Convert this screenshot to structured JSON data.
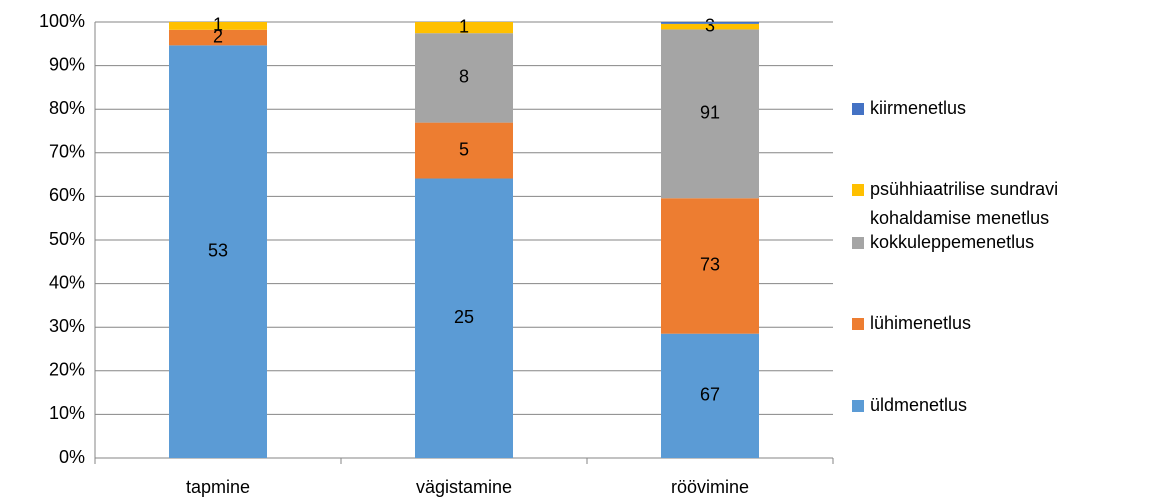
{
  "chart_data": {
    "type": "stacked_percent_bar",
    "categories": [
      "tapmine",
      "vägistamine",
      "röövimine"
    ],
    "series": [
      {
        "name": "üldmenetlus",
        "color": "#5b9bd5",
        "values": [
          53,
          25,
          67
        ]
      },
      {
        "name": "lühimenetlus",
        "color": "#ed7d31",
        "values": [
          2,
          5,
          73
        ]
      },
      {
        "name": "kokkuleppemenetlus",
        "color": "#a5a5a5",
        "values": [
          null,
          8,
          91
        ]
      },
      {
        "name": "psühhiaatrilise sundravi kohaldamise menetlus",
        "color": "#ffc000",
        "values": [
          1,
          1,
          3
        ]
      },
      {
        "name": "kiirmenetlus",
        "color": "#4472c4",
        "values": [
          null,
          null,
          1
        ],
        "value_labels": [
          null,
          null,
          null
        ]
      }
    ],
    "ylim": [
      0,
      100
    ],
    "yticks": [
      {
        "value": 0,
        "label": "0%"
      },
      {
        "value": 10,
        "label": "10%"
      },
      {
        "value": 20,
        "label": "20%"
      },
      {
        "value": 30,
        "label": "30%"
      },
      {
        "value": 40,
        "label": "40%"
      },
      {
        "value": 50,
        "label": "50%"
      },
      {
        "value": 60,
        "label": "60%"
      },
      {
        "value": 70,
        "label": "70%"
      },
      {
        "value": 80,
        "label": "80%"
      },
      {
        "value": 90,
        "label": "90%"
      },
      {
        "value": 100,
        "label": "100%"
      }
    ],
    "grid": true,
    "legend": "right"
  }
}
